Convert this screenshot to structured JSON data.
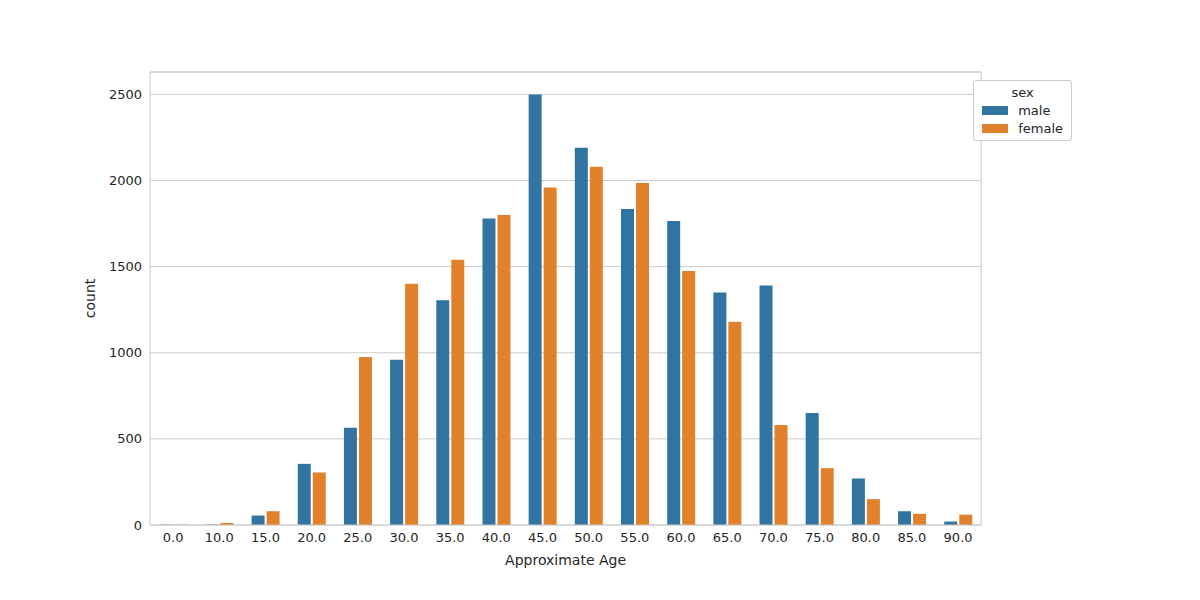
{
  "chart_data": {
    "type": "bar",
    "x_label": "Approximate Age",
    "y_label": "count",
    "legend_title": "sex",
    "categories": [
      "0.0",
      "10.0",
      "15.0",
      "20.0",
      "25.0",
      "30.0",
      "35.0",
      "40.0",
      "45.0",
      "50.0",
      "55.0",
      "60.0",
      "65.0",
      "70.0",
      "75.0",
      "80.0",
      "85.0",
      "90.0"
    ],
    "series": [
      {
        "name": "male",
        "color": "#3274a1",
        "values": [
          2,
          3,
          55,
          355,
          565,
          960,
          1305,
          1780,
          2500,
          2190,
          1835,
          1765,
          1350,
          1390,
          650,
          270,
          80,
          20
        ]
      },
      {
        "name": "female",
        "color": "#e1812c",
        "values": [
          2,
          12,
          80,
          305,
          975,
          1400,
          1540,
          1800,
          1960,
          2080,
          1985,
          1475,
          1180,
          580,
          330,
          150,
          65,
          60
        ]
      }
    ],
    "ylim": [
      0,
      2630
    ],
    "yticks": [
      0,
      500,
      1000,
      1500,
      2000,
      2500
    ],
    "grid": true,
    "legend": "upper right"
  }
}
